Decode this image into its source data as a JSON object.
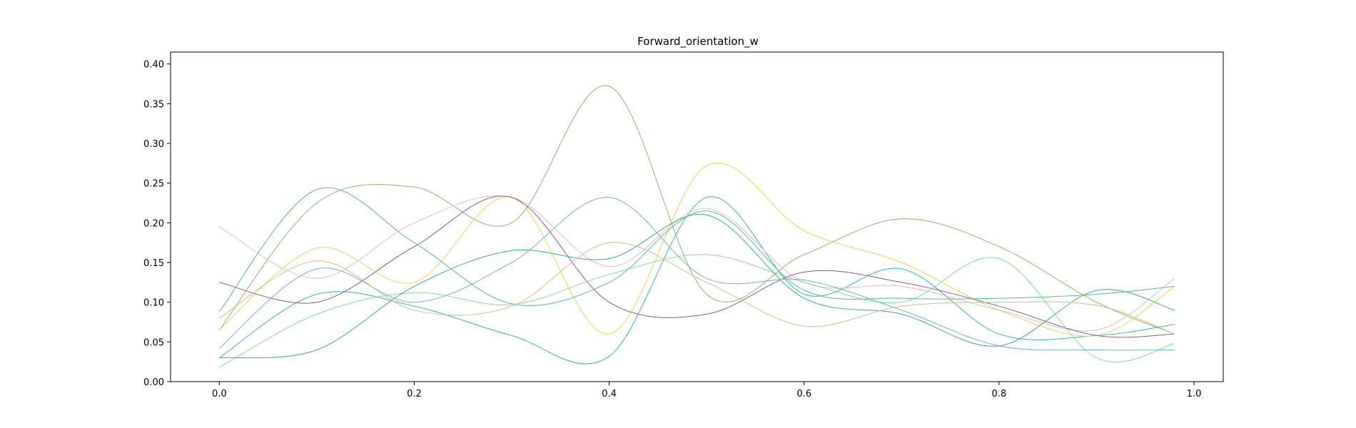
{
  "chart_data": {
    "type": "line",
    "title": "Forward_orientation_w",
    "xlabel": "",
    "ylabel": "",
    "xlim": [
      -0.05,
      1.03
    ],
    "ylim": [
      0.0,
      0.415
    ],
    "grid": false,
    "legend": "none",
    "x_ticks": [
      0.0,
      0.2,
      0.4,
      0.6,
      0.8,
      1.0
    ],
    "x_tick_labels": [
      "0.0",
      "0.2",
      "0.4",
      "0.6",
      "0.8",
      "1.0"
    ],
    "y_ticks": [
      0.0,
      0.05,
      0.1,
      0.15,
      0.2,
      0.25,
      0.3,
      0.35,
      0.4
    ],
    "y_tick_labels": [
      "0.00",
      "0.05",
      "0.10",
      "0.15",
      "0.20",
      "0.25",
      "0.30",
      "0.35",
      "0.40"
    ],
    "x": [
      0.0,
      0.1,
      0.2,
      0.3,
      0.4,
      0.5,
      0.6,
      0.7,
      0.8,
      0.9,
      0.98
    ],
    "series": [
      {
        "color": "#a8a86a",
        "values": [
          0.065,
          0.225,
          0.245,
          0.2,
          0.372,
          0.11,
          0.16,
          0.205,
          0.17,
          0.1,
          0.06
        ]
      },
      {
        "color": "#2fb5c0",
        "values": [
          0.03,
          0.11,
          0.095,
          0.058,
          0.032,
          0.232,
          0.11,
          0.142,
          0.06,
          0.058,
          0.072
        ]
      },
      {
        "color": "#e8d44a",
        "values": [
          0.065,
          0.168,
          0.125,
          0.232,
          0.06,
          0.272,
          0.19,
          0.15,
          0.09,
          0.058,
          0.12
        ]
      },
      {
        "color": "#e3b8cc",
        "values": [
          0.195,
          0.13,
          0.2,
          0.232,
          0.145,
          0.218,
          0.125,
          0.12,
          0.09,
          0.065,
          0.13
        ]
      },
      {
        "color": "#8a5a86",
        "values": [
          0.125,
          0.1,
          0.17,
          0.232,
          0.1,
          0.085,
          0.138,
          0.125,
          0.095,
          0.058,
          0.06
        ]
      },
      {
        "color": "#7fe08a",
        "values": [
          0.018,
          0.085,
          0.112,
          0.097,
          0.135,
          0.16,
          0.125,
          0.1,
          0.155,
          0.03,
          0.048
        ]
      },
      {
        "color": "#33b577",
        "values": [
          0.03,
          0.04,
          0.12,
          0.165,
          0.155,
          0.21,
          0.105,
          0.085,
          0.045,
          0.115,
          0.09
        ]
      },
      {
        "color": "#4cc08a",
        "values": [
          0.088,
          0.242,
          0.175,
          0.098,
          0.125,
          0.215,
          0.115,
          0.105,
          0.105,
          0.11,
          0.12
        ]
      },
      {
        "color": "#6ab0d8",
        "values": [
          0.042,
          0.142,
          0.1,
          0.15,
          0.232,
          0.13,
          0.128,
          0.09,
          0.045,
          0.04,
          0.04
        ]
      },
      {
        "color": "#c8c47a",
        "values": [
          0.08,
          0.152,
          0.09,
          0.095,
          0.175,
          0.125,
          0.07,
          0.095,
          0.1,
          0.096,
          0.06
        ]
      }
    ]
  }
}
